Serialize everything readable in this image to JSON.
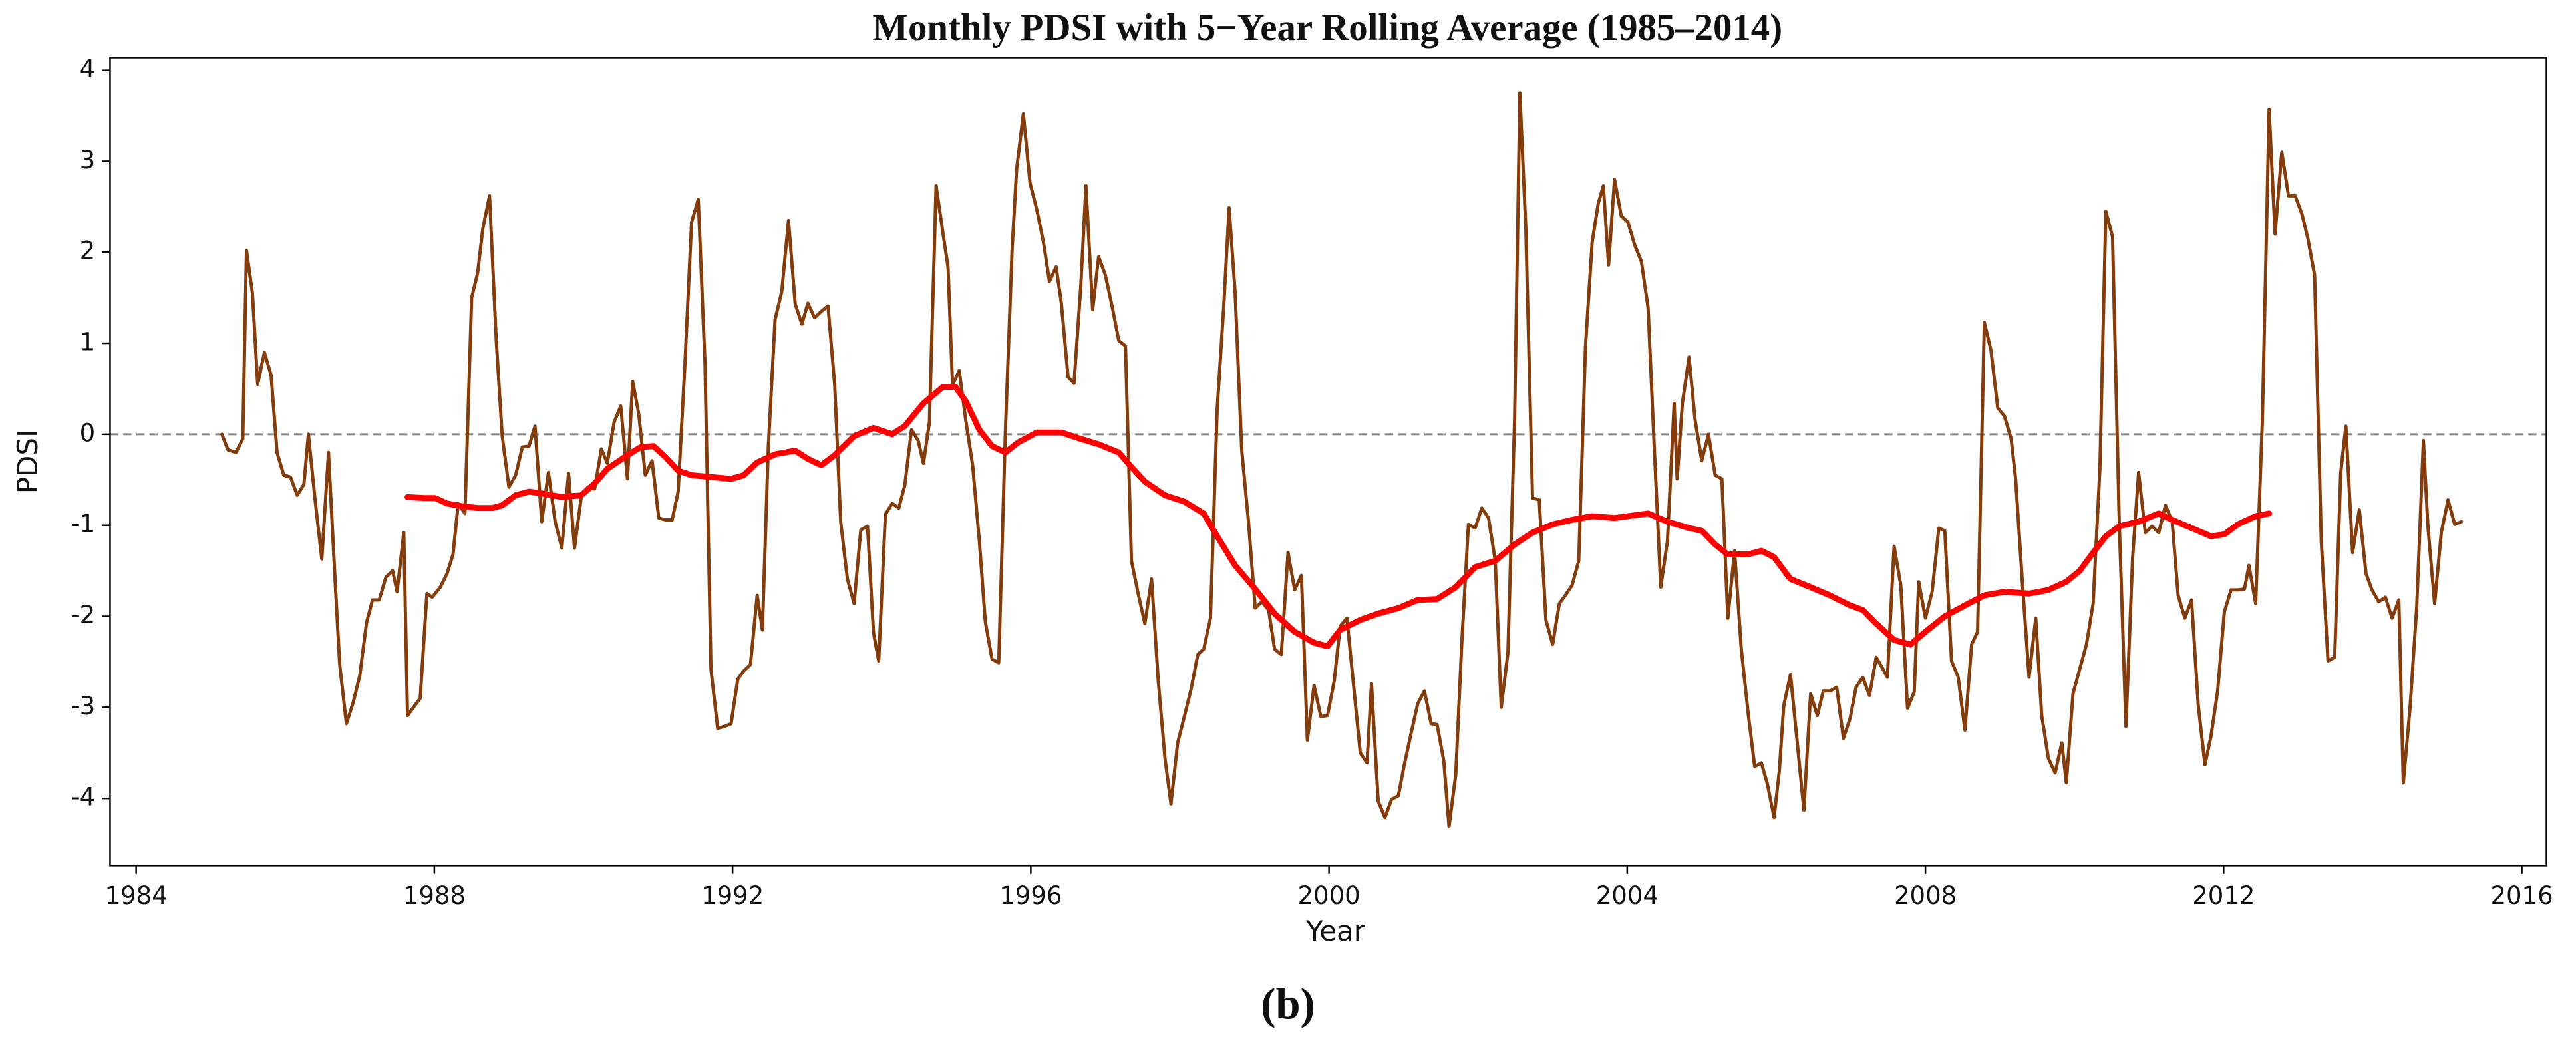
{
  "chart_data": {
    "type": "line",
    "title": "Monthly PDSI with 5−Year Rolling Average (1985–2014)",
    "x_label": "Year",
    "y_label": "PDSI",
    "caption": "(b)",
    "xlim": [
      1983.65,
      2016.33
    ],
    "ylim": [
      -4.74,
      4.14
    ],
    "xticks": [
      1984,
      1988,
      1992,
      1996,
      2000,
      2004,
      2008,
      2012,
      2016
    ],
    "yticks": [
      -4,
      -3,
      -2,
      -1,
      0,
      1,
      2,
      3,
      4
    ],
    "grid": false,
    "hline": 0,
    "series": [
      {
        "color": "#843c0c",
        "width": 2,
        "x": [
          1985.15,
          1985.23,
          1985.34,
          1985.43,
          1985.48,
          1985.56,
          1985.63,
          1985.72,
          1985.81,
          1985.89,
          1985.98,
          1986.07,
          1986.16,
          1986.25,
          1986.31,
          1986.4,
          1986.49,
          1986.58,
          1986.67,
          1986.73,
          1986.82,
          1986.91,
          1987.0,
          1987.09,
          1987.17,
          1987.26,
          1987.35,
          1987.44,
          1987.5,
          1987.59,
          1987.64,
          1987.72,
          1987.81,
          1987.9,
          1987.97,
          1988.08,
          1988.17,
          1988.25,
          1988.32,
          1988.41,
          1988.5,
          1988.58,
          1988.65,
          1988.74,
          1988.83,
          1988.91,
          1989.0,
          1989.09,
          1989.18,
          1989.27,
          1989.35,
          1989.44,
          1989.53,
          1989.62,
          1989.71,
          1989.8,
          1989.88,
          1989.97,
          1990.06,
          1990.15,
          1990.24,
          1990.32,
          1990.41,
          1990.5,
          1990.59,
          1990.66,
          1990.74,
          1990.83,
          1990.92,
          1991.01,
          1991.1,
          1991.19,
          1991.27,
          1991.36,
          1991.45,
          1991.54,
          1991.63,
          1991.71,
          1991.8,
          1991.89,
          1991.98,
          1992.07,
          1992.15,
          1992.24,
          1992.33,
          1992.4,
          1992.48,
          1992.57,
          1992.66,
          1992.75,
          1992.84,
          1992.93,
          1993.01,
          1993.1,
          1993.19,
          1993.28,
          1993.37,
          1993.45,
          1993.54,
          1993.63,
          1993.72,
          1993.81,
          1993.89,
          1993.96,
          1994.05,
          1994.14,
          1994.23,
          1994.31,
          1994.4,
          1994.49,
          1994.56,
          1994.64,
          1994.73,
          1994.82,
          1994.89,
          1994.95,
          1995.04,
          1995.13,
          1995.22,
          1995.31,
          1995.39,
          1995.48,
          1995.57,
          1995.66,
          1995.75,
          1995.81,
          1995.9,
          1995.99,
          1996.08,
          1996.17,
          1996.25,
          1996.34,
          1996.41,
          1996.5,
          1996.58,
          1996.67,
          1996.74,
          1996.83,
          1996.91,
          1997.0,
          1997.09,
          1997.18,
          1997.27,
          1997.35,
          1997.44,
          1997.53,
          1997.62,
          1997.71,
          1997.8,
          1997.88,
          1997.97,
          1998.06,
          1998.15,
          1998.24,
          1998.32,
          1998.41,
          1998.5,
          1998.59,
          1998.66,
          1998.74,
          1998.83,
          1998.92,
          1999.01,
          1999.1,
          1999.19,
          1999.27,
          1999.36,
          1999.45,
          1999.54,
          1999.63,
          1999.71,
          1999.8,
          1999.89,
          1999.98,
          2000.07,
          2000.15,
          2000.24,
          2000.33,
          2000.42,
          2000.51,
          2000.57,
          2000.66,
          2000.75,
          2000.84,
          2000.93,
          2001.01,
          2001.1,
          2001.19,
          2001.28,
          2001.37,
          2001.45,
          2001.54,
          2001.61,
          2001.7,
          2001.78,
          2001.87,
          2001.96,
          2002.05,
          2002.14,
          2002.23,
          2002.31,
          2002.4,
          2002.49,
          2002.56,
          2002.64,
          2002.73,
          2002.82,
          2002.91,
          2003.0,
          2003.09,
          2003.17,
          2003.26,
          2003.35,
          2003.44,
          2003.53,
          2003.61,
          2003.68,
          2003.75,
          2003.83,
          2003.92,
          2004.01,
          2004.1,
          2004.19,
          2004.28,
          2004.36,
          2004.45,
          2004.54,
          2004.63,
          2004.67,
          2004.74,
          2004.83,
          2004.91,
          2005.0,
          2005.09,
          2005.18,
          2005.27,
          2005.35,
          2005.44,
          2005.53,
          2005.62,
          2005.71,
          2005.8,
          2005.88,
          2005.97,
          2006.04,
          2006.1,
          2006.19,
          2006.28,
          2006.37,
          2006.46,
          2006.55,
          2006.63,
          2006.72,
          2006.81,
          2006.9,
          2006.99,
          2007.07,
          2007.16,
          2007.25,
          2007.34,
          2007.43,
          2007.49,
          2007.58,
          2007.67,
          2007.76,
          2007.85,
          2007.91,
          2008.0,
          2008.09,
          2008.18,
          2008.26,
          2008.35,
          2008.44,
          2008.53,
          2008.62,
          2008.7,
          2008.79,
          2008.88,
          2008.97,
          2009.06,
          2009.15,
          2009.21,
          2009.3,
          2009.39,
          2009.48,
          2009.56,
          2009.65,
          2009.74,
          2009.83,
          2009.89,
          2009.98,
          2010.07,
          2010.16,
          2010.25,
          2010.34,
          2010.42,
          2010.51,
          2010.6,
          2010.69,
          2010.78,
          2010.86,
          2010.95,
          2011.04,
          2011.13,
          2011.22,
          2011.31,
          2011.39,
          2011.48,
          2011.57,
          2011.66,
          2011.75,
          2011.83,
          2011.92,
          2012.01,
          2012.1,
          2012.19,
          2012.28,
          2012.34,
          2012.43,
          2012.52,
          2012.61,
          2012.69,
          2012.78,
          2012.87,
          2012.96,
          2013.05,
          2013.13,
          2013.22,
          2013.31,
          2013.4,
          2013.49,
          2013.57,
          2013.64,
          2013.73,
          2013.82,
          2013.91,
          2013.99,
          2014.08,
          2014.17,
          2014.26,
          2014.35,
          2014.41,
          2014.5,
          2014.59,
          2014.68,
          2014.74,
          2014.83,
          2014.92,
          2015.01,
          2015.1,
          2015.19
        ],
        "values": [
          0,
          -0.17,
          -0.2,
          -0.05,
          2.02,
          1.55,
          0.55,
          0.9,
          0.65,
          -0.2,
          -0.45,
          -0.47,
          -0.67,
          -0.55,
          0,
          -0.72,
          -1.37,
          -0.2,
          -1.63,
          -2.53,
          -3.18,
          -2.95,
          -2.65,
          -2.07,
          -1.82,
          -1.82,
          -1.57,
          -1.5,
          -1.73,
          -1.08,
          -3.09,
          -3.0,
          -2.9,
          -1.75,
          -1.79,
          -1.68,
          -1.53,
          -1.32,
          -0.76,
          -0.87,
          1.5,
          1.77,
          2.26,
          2.62,
          1.03,
          -0.02,
          -0.58,
          -0.45,
          -0.14,
          -0.13,
          0.09,
          -0.96,
          -0.42,
          -0.96,
          -1.25,
          -0.43,
          -1.25,
          -0.69,
          -0.58,
          -0.6,
          -0.16,
          -0.32,
          0.13,
          0.31,
          -0.49,
          0.58,
          0.23,
          -0.45,
          -0.29,
          -0.92,
          -0.94,
          -0.94,
          -0.63,
          0.76,
          2.33,
          2.58,
          0.78,
          -2.58,
          -3.23,
          -3.21,
          -3.18,
          -2.69,
          -2.6,
          -2.53,
          -1.77,
          -2.15,
          -0.13,
          1.26,
          1.57,
          2.35,
          1.43,
          1.21,
          1.44,
          1.28,
          1.35,
          1.41,
          0.54,
          -0.96,
          -1.59,
          -1.86,
          -1.05,
          -1.01,
          -2.18,
          -2.49,
          -0.88,
          -0.76,
          -0.81,
          -0.56,
          0.05,
          -0.07,
          -0.32,
          0.13,
          2.73,
          2.22,
          1.84,
          0.54,
          0.7,
          0.14,
          -0.34,
          -1.17,
          -2.06,
          -2.47,
          -2.51,
          0.05,
          2.04,
          2.91,
          3.52,
          2.76,
          2.47,
          2.11,
          1.68,
          1.84,
          1.44,
          0.63,
          0.56,
          1.62,
          2.73,
          1.37,
          1.95,
          1.75,
          1.41,
          1.03,
          0.97,
          -1.39,
          -1.75,
          -2.08,
          -1.59,
          -2.71,
          -3.56,
          -4.06,
          -3.39,
          -3.1,
          -2.8,
          -2.42,
          -2.36,
          -2.02,
          0.27,
          1.43,
          2.49,
          1.57,
          -0.18,
          -0.96,
          -1.91,
          -1.84,
          -1.93,
          -2.36,
          -2.42,
          -1.3,
          -1.71,
          -1.55,
          -3.36,
          -2.76,
          -3.1,
          -3.09,
          -2.71,
          -2.11,
          -2.02,
          -2.76,
          -3.5,
          -3.61,
          -2.74,
          -4.03,
          -4.21,
          -4.01,
          -3.97,
          -3.63,
          -3.29,
          -2.96,
          -2.82,
          -3.18,
          -3.19,
          -3.59,
          -4.31,
          -3.74,
          -2.31,
          -0.99,
          -1.03,
          -0.81,
          -0.92,
          -1.39,
          -3.0,
          -2.4,
          0.18,
          3.75,
          2.26,
          -0.7,
          -0.72,
          -2.04,
          -2.31,
          -1.86,
          -1.77,
          -1.66,
          -1.39,
          0.96,
          2.11,
          2.53,
          2.73,
          1.86,
          2.8,
          2.4,
          2.33,
          2.08,
          1.9,
          1.39,
          -0.09,
          -1.68,
          -1.17,
          0.34,
          -0.49,
          0.34,
          0.85,
          0.16,
          -0.29,
          0,
          -0.45,
          -0.49,
          -2.02,
          -1.28,
          -2.36,
          -3.05,
          -3.65,
          -3.61,
          -3.84,
          -4.21,
          -3.7,
          -2.98,
          -2.64,
          -3.38,
          -4.13,
          -2.85,
          -3.09,
          -2.82,
          -2.82,
          -2.78,
          -3.34,
          -3.12,
          -2.78,
          -2.67,
          -2.87,
          -2.45,
          -2.58,
          -2.67,
          -1.23,
          -1.66,
          -3.01,
          -2.83,
          -1.62,
          -2.02,
          -1.73,
          -1.03,
          -1.06,
          -2.49,
          -2.67,
          -3.25,
          -2.31,
          -2.17,
          1.23,
          0.92,
          0.29,
          0.2,
          -0.05,
          -0.49,
          -1.62,
          -2.67,
          -2.02,
          -3.09,
          -3.56,
          -3.72,
          -3.39,
          -3.83,
          -2.85,
          -2.58,
          -2.31,
          -1.86,
          -0.38,
          2.45,
          2.17,
          -0.97,
          -3.21,
          -1.35,
          -0.42,
          -1.08,
          -1.01,
          -1.08,
          -0.78,
          -0.96,
          -1.77,
          -2.02,
          -1.82,
          -2.98,
          -3.63,
          -3.32,
          -2.82,
          -1.95,
          -1.71,
          -1.71,
          -1.7,
          -1.44,
          -1.86,
          0.16,
          3.57,
          2.2,
          3.1,
          2.62,
          2.62,
          2.42,
          2.15,
          1.75,
          -1.17,
          -2.49,
          -2.45,
          -0.43,
          0.09,
          -1.3,
          -0.83,
          -1.53,
          -1.71,
          -1.84,
          -1.79,
          -2.02,
          -1.82,
          -3.83,
          -3.01,
          -1.9,
          -0.07,
          -1.01,
          -1.86,
          -1.08,
          -0.72,
          -0.99,
          -0.96
        ]
      },
      {
        "color": "#ff0000",
        "width": 3.6,
        "x": [
          1987.64,
          1987.86,
          1988.01,
          1988.17,
          1988.37,
          1988.58,
          1988.78,
          1988.91,
          1989.09,
          1989.27,
          1989.44,
          1989.71,
          1989.97,
          1990.15,
          1990.32,
          1990.59,
          1990.77,
          1990.94,
          1991.1,
          1991.27,
          1991.45,
          1991.71,
          1991.98,
          1992.15,
          1992.33,
          1992.57,
          1992.84,
          1993.01,
          1993.19,
          1993.37,
          1993.63,
          1993.89,
          1994.14,
          1994.31,
          1994.56,
          1994.82,
          1994.99,
          1995.13,
          1995.31,
          1995.48,
          1995.66,
          1995.83,
          1996.08,
          1996.41,
          1996.67,
          1996.91,
          1997.18,
          1997.35,
          1997.53,
          1997.8,
          1998.06,
          1998.32,
          1998.5,
          1998.74,
          1999.01,
          1999.27,
          1999.54,
          1999.8,
          1999.98,
          2000.15,
          2000.42,
          2000.66,
          2000.93,
          2001.19,
          2001.45,
          2001.7,
          2001.96,
          2002.23,
          2002.49,
          2002.73,
          2003.0,
          2003.26,
          2003.53,
          2003.83,
          2004.01,
          2004.28,
          2004.54,
          2004.83,
          2005.0,
          2005.18,
          2005.35,
          2005.62,
          2005.8,
          2005.97,
          2006.19,
          2006.46,
          2006.72,
          2006.99,
          2007.16,
          2007.34,
          2007.58,
          2007.8,
          2008.0,
          2008.26,
          2008.53,
          2008.79,
          2009.06,
          2009.39,
          2009.65,
          2009.89,
          2010.07,
          2010.25,
          2010.42,
          2010.6,
          2010.86,
          2011.13,
          2011.31,
          2011.57,
          2011.83,
          2012.01,
          2012.19,
          2012.43,
          2012.61
        ],
        "values": [
          -0.69,
          -0.7,
          -0.7,
          -0.76,
          -0.79,
          -0.81,
          -0.81,
          -0.78,
          -0.67,
          -0.63,
          -0.65,
          -0.69,
          -0.67,
          -0.54,
          -0.38,
          -0.23,
          -0.14,
          -0.13,
          -0.25,
          -0.4,
          -0.45,
          -0.47,
          -0.49,
          -0.45,
          -0.31,
          -0.22,
          -0.18,
          -0.27,
          -0.34,
          -0.23,
          -0.02,
          0.07,
          0,
          0.09,
          0.34,
          0.52,
          0.52,
          0.36,
          0.05,
          -0.13,
          -0.2,
          -0.09,
          0.02,
          0.02,
          -0.05,
          -0.11,
          -0.2,
          -0.36,
          -0.52,
          -0.67,
          -0.74,
          -0.87,
          -1.12,
          -1.44,
          -1.7,
          -1.97,
          -2.17,
          -2.29,
          -2.33,
          -2.15,
          -2.04,
          -1.97,
          -1.91,
          -1.82,
          -1.81,
          -1.68,
          -1.46,
          -1.39,
          -1.21,
          -1.08,
          -0.99,
          -0.94,
          -0.9,
          -0.92,
          -0.9,
          -0.87,
          -0.96,
          -1.03,
          -1.06,
          -1.21,
          -1.32,
          -1.32,
          -1.28,
          -1.35,
          -1.59,
          -1.68,
          -1.77,
          -1.88,
          -1.93,
          -2.08,
          -2.26,
          -2.31,
          -2.17,
          -2.0,
          -1.88,
          -1.77,
          -1.73,
          -1.75,
          -1.71,
          -1.62,
          -1.5,
          -1.3,
          -1.12,
          -1.01,
          -0.96,
          -0.87,
          -0.94,
          -1.03,
          -1.12,
          -1.1,
          -0.99,
          -0.9,
          -0.87
        ]
      }
    ]
  }
}
